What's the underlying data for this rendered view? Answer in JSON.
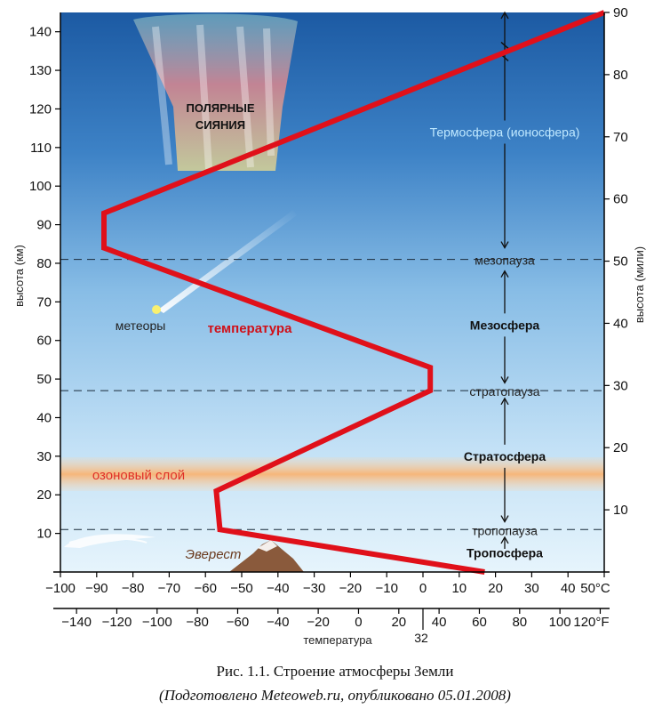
{
  "chart_data": {
    "type": "line",
    "series": [
      {
        "name": "температура",
        "points": [
          {
            "temp_c": 17,
            "alt_km": 0
          },
          {
            "temp_c": -56,
            "alt_km": 11
          },
          {
            "temp_c": -57,
            "alt_km": 21
          },
          {
            "temp_c": 2,
            "alt_km": 47
          },
          {
            "temp_c": 2,
            "alt_km": 53
          },
          {
            "temp_c": -88,
            "alt_km": 84
          },
          {
            "temp_c": -88,
            "alt_km": 93
          },
          {
            "temp_c": 50,
            "alt_km": 145
          }
        ]
      }
    ],
    "xlabel": "температура",
    "ylabel_left": "высота (км)",
    "ylabel_right": "высота (мили)",
    "xlim_c": [
      -100,
      50
    ],
    "ylim_km": [
      0,
      145
    ],
    "ylim_miles": [
      0,
      90
    ],
    "x_ticks_c": [
      "−100",
      "−90",
      "−80",
      "−70",
      "−60",
      "−50",
      "−40",
      "−30",
      "−20",
      "−10",
      "0",
      "10",
      "20",
      "30",
      "40",
      "50°C"
    ],
    "x_ticks_f": [
      "−140",
      "−120",
      "−100",
      "−80",
      "−60",
      "−40",
      "−20",
      "0",
      "20",
      "40",
      "60",
      "80",
      "100",
      "120°F"
    ],
    "x_tick_f_extra": "32",
    "y_ticks_km": [
      "10",
      "20",
      "30",
      "40",
      "50",
      "60",
      "70",
      "80",
      "90",
      "100",
      "110",
      "120",
      "130",
      "140"
    ],
    "y_ticks_miles": [
      "10",
      "20",
      "30",
      "40",
      "50",
      "60",
      "70",
      "80",
      "90"
    ],
    "boundaries": [
      {
        "label": "тропопауза",
        "alt_km": 11
      },
      {
        "label": "стратопауза",
        "alt_km": 47
      },
      {
        "label": "мезопауза",
        "alt_km": 81
      }
    ],
    "layers": [
      {
        "label": "Тропосфера",
        "alt_km": 5
      },
      {
        "label": "Стратосфера",
        "alt_km": 30
      },
      {
        "label": "Мезосфера",
        "alt_km": 64
      },
      {
        "label": "Термосфера (ионосфера)",
        "alt_km": 114
      }
    ],
    "annotations": {
      "aurora_line1": "ПОЛЯРНЫЕ",
      "aurora_line2": "СИЯНИЯ",
      "meteors": "метеоры",
      "temperature": "температура",
      "ozone": "озоновый слой",
      "everest": "Эверест"
    }
  },
  "caption": {
    "line1": "Рис. 1.1. Строение атмосферы Земли",
    "line2": "(Подготовлено Meteoweb.ru, опубликовано 05.01.2008)"
  },
  "colors": {
    "temperature_line": "#e0101a",
    "sky_top": "#1f5fa8",
    "sky_bottom": "#dff0fb",
    "ozone": "#f7c08a"
  }
}
